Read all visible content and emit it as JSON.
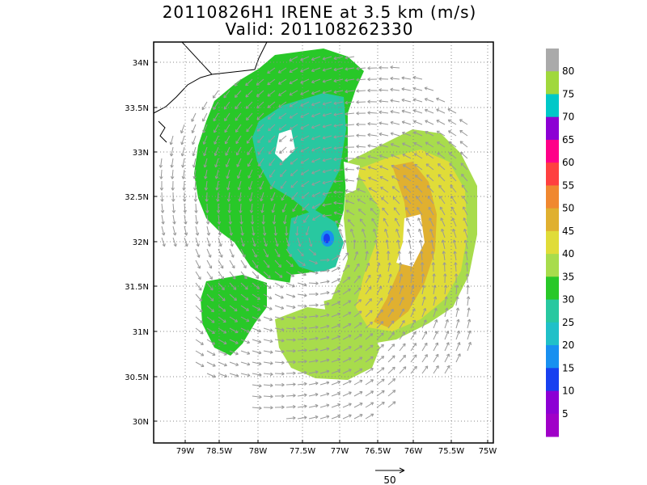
{
  "title_line1": "20110826H1 IRENE at 3.5 km (m/s)",
  "title_line2": "Valid: 201108262330",
  "y_ticks": [
    "34N",
    "33.5N",
    "33N",
    "32.5N",
    "32N",
    "31.5N",
    "31N",
    "30.5N",
    "30N"
  ],
  "x_ticks": [
    "79W",
    "78.5W",
    "78W",
    "77.5W",
    "77W",
    "76.5W",
    "76W",
    "75.5W",
    "75W"
  ],
  "colorbar": {
    "labels": [
      "80",
      "75",
      "70",
      "65",
      "60",
      "55",
      "50",
      "45",
      "40",
      "35",
      "30",
      "25",
      "20",
      "15",
      "10",
      "5"
    ],
    "colors": [
      "#aaaaaa",
      "#a0d83c",
      "#00c8c8",
      "#8c00d4",
      "#ff0088",
      "#ff4040",
      "#f08830",
      "#e0b030",
      "#e0dc38",
      "#a8dc4c",
      "#28c828",
      "#28c8a0",
      "#20c0c8",
      "#1890f0",
      "#1840f0",
      "#8c00d4",
      "#a000c8"
    ]
  },
  "reference_vector_label": "50",
  "storm_center_color": "#1840f0"
}
